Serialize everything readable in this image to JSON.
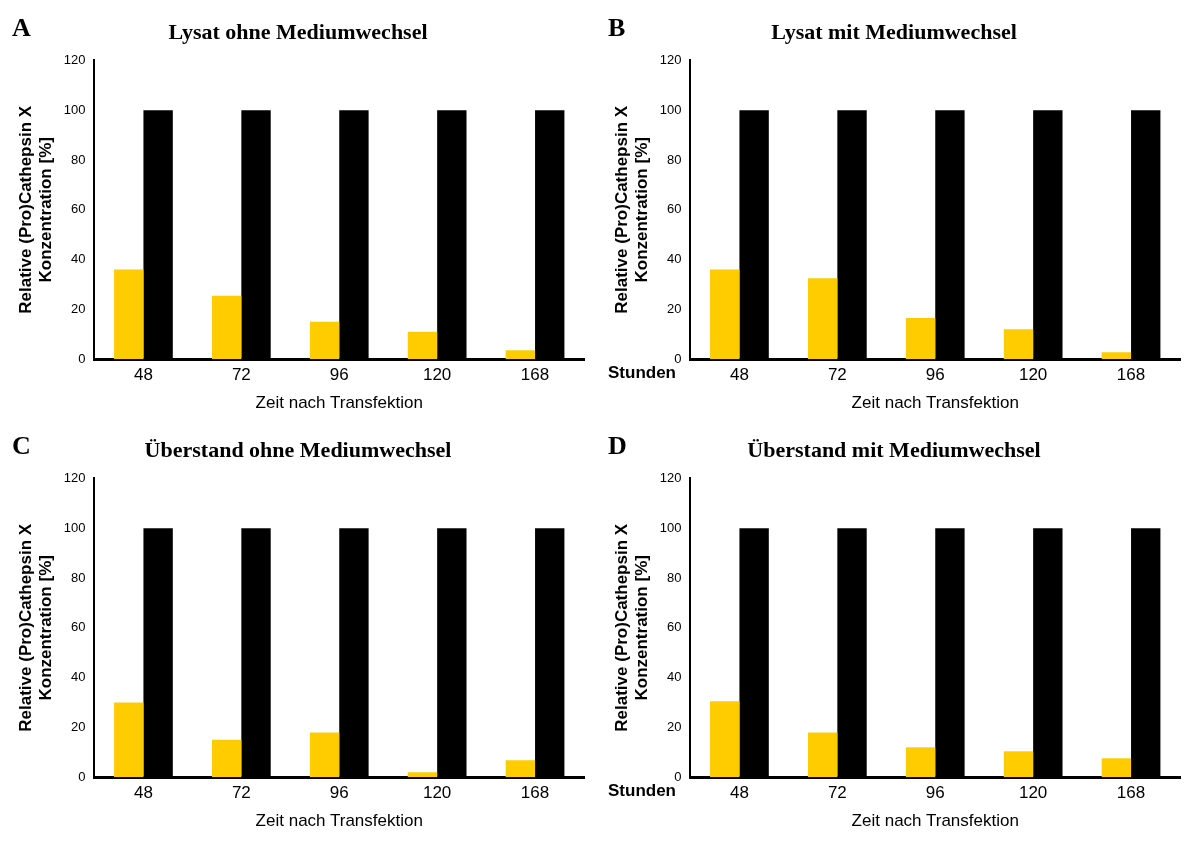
{
  "chart_data": [
    {
      "type": "bar",
      "title": "Lysat ohne Mediumwechsel",
      "xlabel": "Zeit nach Transfektion",
      "ylabel": "Relative (Pro)Cathepsin X\nKonzentration [%]",
      "annotations": [
        "A"
      ],
      "categories": [
        "48",
        "72",
        "96",
        "120",
        "168"
      ],
      "series": [
        {
          "color": "#ffcc00",
          "values": [
            36,
            25.5,
            15,
            11,
            3.6
          ]
        },
        {
          "color": "#000000",
          "values": [
            100,
            100,
            100,
            100,
            100
          ]
        }
      ],
      "ylim": [
        0,
        120
      ],
      "yticks": [
        0,
        20,
        40,
        60,
        80,
        100,
        120
      ],
      "grid": false
    },
    {
      "type": "bar",
      "title": "Lysat mit Mediumwechsel",
      "xlabel": "Zeit nach Transfektion",
      "ylabel": "Relative (Pro)Cathepsin X\nKonzentration [%]",
      "annotations": [
        "B",
        "Stunden"
      ],
      "categories": [
        "48",
        "72",
        "96",
        "120",
        "168"
      ],
      "series": [
        {
          "color": "#ffcc00",
          "values": [
            36,
            32.5,
            16.5,
            12,
            2.8
          ]
        },
        {
          "color": "#000000",
          "values": [
            100,
            100,
            100,
            100,
            100
          ]
        }
      ],
      "ylim": [
        0,
        120
      ],
      "yticks": [
        0,
        20,
        40,
        60,
        80,
        100,
        120
      ],
      "grid": false
    },
    {
      "type": "bar",
      "title": "Überstand ohne Mediumwechsel",
      "xlabel": "Zeit nach Transfektion",
      "ylabel": "Relative (Pro)Cathepsin X\nKonzentration [%]",
      "annotations": [
        "C"
      ],
      "categories": [
        "48",
        "72",
        "96",
        "120",
        "168"
      ],
      "series": [
        {
          "color": "#ffcc00",
          "values": [
            30,
            15,
            18,
            2,
            6.8
          ]
        },
        {
          "color": "#000000",
          "values": [
            100,
            100,
            100,
            100,
            100
          ]
        }
      ],
      "ylim": [
        0,
        120
      ],
      "yticks": [
        0,
        20,
        40,
        60,
        80,
        100,
        120
      ],
      "grid": false
    },
    {
      "type": "bar",
      "title": "Überstand mit Mediumwechsel",
      "xlabel": "Zeit nach Transfektion",
      "ylabel": "Relative (Pro)Cathepsin X\nKonzentration [%]",
      "annotations": [
        "D",
        "Stunden"
      ],
      "categories": [
        "48",
        "72",
        "96",
        "120",
        "168"
      ],
      "series": [
        {
          "color": "#ffcc00",
          "values": [
            30.5,
            18,
            12,
            10.4,
            7.6
          ]
        },
        {
          "color": "#000000",
          "values": [
            100,
            100,
            100,
            100,
            100
          ]
        }
      ],
      "ylim": [
        0,
        120
      ],
      "yticks": [
        0,
        20,
        40,
        60,
        80,
        100,
        120
      ],
      "grid": false
    }
  ]
}
